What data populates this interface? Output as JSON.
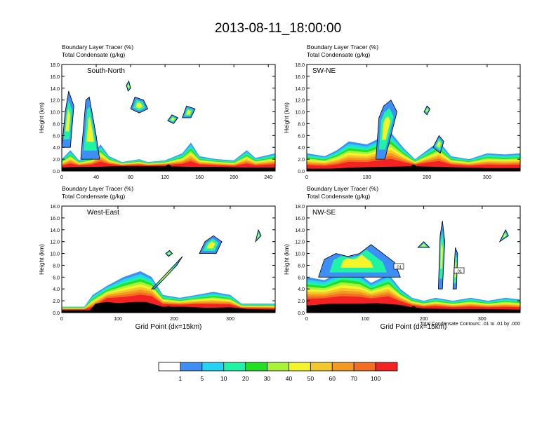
{
  "title": "2013-08-11_18:00:00",
  "panel_left_header": [
    "Boundary Layer Tracer   (%)",
    "Total Condensate   (g/kg)"
  ],
  "x_label": "Grid Point (dx=15km)",
  "y_label": "Height (km)",
  "contour_note": "Total Condensate Contours: .01 to .01 by .000",
  "contour_box_label": ".01",
  "colorbar": {
    "labels": [
      "1",
      "5",
      "10",
      "20",
      "30",
      "40",
      "50",
      "60",
      "70",
      "100"
    ],
    "colors": [
      "#ffffff",
      "#3e8ef7",
      "#22d3f3",
      "#1ef4a4",
      "#22e022",
      "#a8f23a",
      "#f4f42a",
      "#f4c72a",
      "#f49a22",
      "#f46e22",
      "#f42222"
    ]
  },
  "chart_data": [
    {
      "type": "heatmap",
      "title": "South-North",
      "xlabel": "",
      "ylabel": "Height (km)",
      "xlim": [
        0,
        248
      ],
      "ylim": [
        0,
        18
      ],
      "xticks": [
        "0",
        "40",
        "80",
        "120",
        "160",
        "200",
        "240"
      ],
      "yticks": [
        "0.0",
        "2.0",
        "4.0",
        "6.0",
        "8.0",
        "10.0",
        "12.0",
        "14.0",
        "16.0",
        "18.0"
      ]
    },
    {
      "type": "heatmap",
      "title": "SW-NE",
      "xlabel": "",
      "ylabel": "Height (km)",
      "xlim": [
        0,
        355
      ],
      "ylim": [
        0,
        18
      ],
      "xticks": [
        "0",
        "100",
        "200",
        "300"
      ],
      "yticks": [
        "0.0",
        "2.0",
        "4.0",
        "6.0",
        "8.0",
        "10.0",
        "12.0",
        "14.0",
        "16.0",
        "18.0"
      ]
    },
    {
      "type": "heatmap",
      "title": "West-East",
      "xlabel": "Grid Point (dx=15km)",
      "ylabel": "Height (km)",
      "xlim": [
        0,
        380
      ],
      "ylim": [
        0,
        18
      ],
      "xticks": [
        "0",
        "100",
        "200",
        "300"
      ],
      "yticks": [
        "0.0",
        "2.0",
        "4.0",
        "6.0",
        "8.0",
        "10.0",
        "12.0",
        "14.0",
        "16.0",
        "18.0"
      ]
    },
    {
      "type": "heatmap",
      "title": "NW-SE",
      "xlabel": "Grid Point (dx=15km)",
      "ylabel": "Height (km)",
      "xlim": [
        0,
        365
      ],
      "ylim": [
        0,
        18
      ],
      "xticks": [
        "0",
        "100",
        "200",
        "300"
      ],
      "yticks": [
        "0.0",
        "2.0",
        "4.0",
        "6.0",
        "8.0",
        "10.0",
        "12.0",
        "14.0",
        "16.0",
        "18.0"
      ]
    }
  ]
}
